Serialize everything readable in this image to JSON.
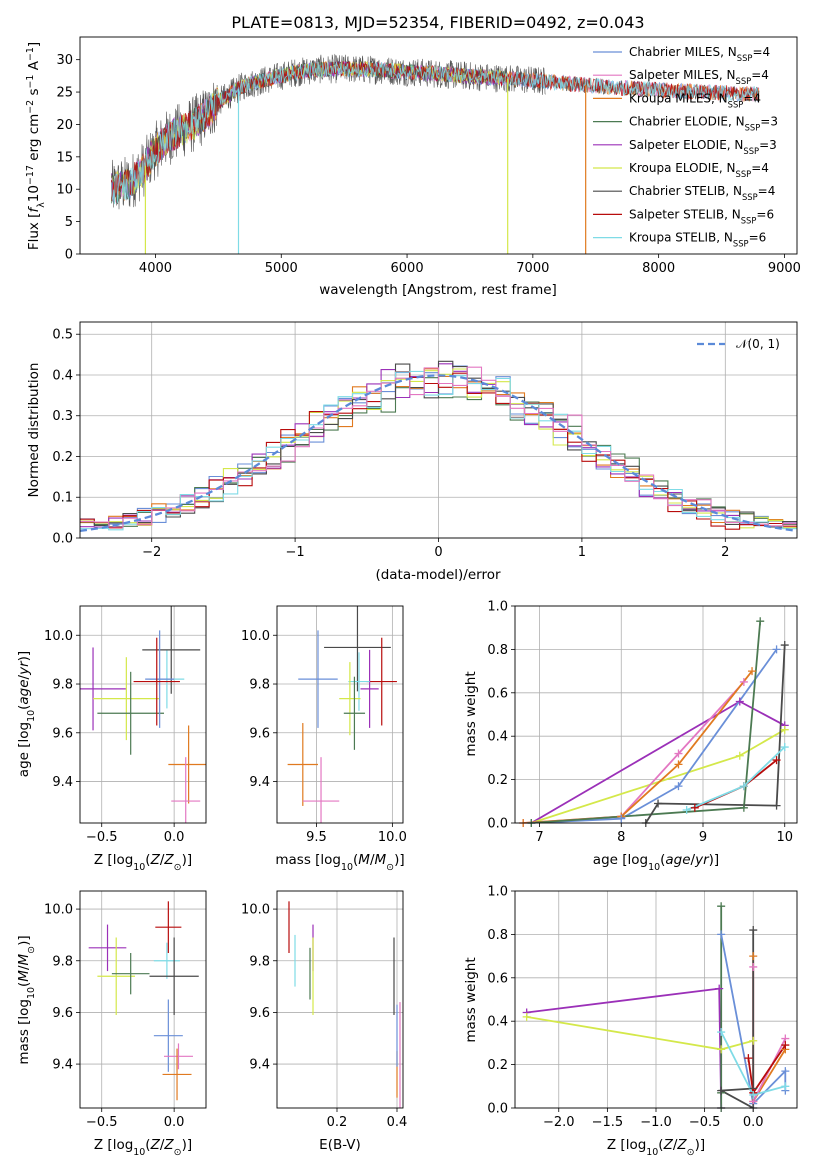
{
  "title": "PLATE=0813, MJD=52354, FIBERID=0492, z=0.043",
  "colors": {
    "Chabrier MILES": "#6a8fd8",
    "Salpeter MILES": "#e377c2",
    "Kroupa MILES": "#e07a20",
    "Chabrier ELODIE": "#4c7a52",
    "Salpeter ELODIE": "#9b30b8",
    "Kroupa ELODIE": "#d4e84a",
    "Chabrier STELIB": "#4a4a4a",
    "Salpeter STELIB": "#b80c0c",
    "Kroupa STELIB": "#7fdbe6"
  },
  "chart_data": [
    {
      "id": "spectrum",
      "type": "line",
      "xlabel": "wavelength [Angstrom, rest frame]",
      "ylabel": "Flux [f_λ 10^-17 erg cm^-2 s^-1 A^-1]",
      "xlim": [
        3400,
        9100
      ],
      "ylim": [
        0,
        33.5
      ],
      "xticks": [
        4000,
        5000,
        6000,
        7000,
        8000,
        9000
      ],
      "yticks": [
        0,
        5,
        10,
        15,
        20,
        25,
        30
      ],
      "legend_position": "upper right",
      "legend": [
        {
          "label": "Chabrier MILES, N",
          "sub": "SSP",
          "tail": "=4",
          "key": "Chabrier MILES"
        },
        {
          "label": "Salpeter MILES, N",
          "sub": "SSP",
          "tail": "=4",
          "key": "Salpeter MILES"
        },
        {
          "label": "Kroupa MILES, N",
          "sub": "SSP",
          "tail": "=4",
          "key": "Kroupa MILES"
        },
        {
          "label": "Chabrier ELODIE, N",
          "sub": "SSP",
          "tail": "=3",
          "key": "Chabrier ELODIE"
        },
        {
          "label": "Salpeter ELODIE, N",
          "sub": "SSP",
          "tail": "=3",
          "key": "Salpeter ELODIE"
        },
        {
          "label": "Kroupa ELODIE, N",
          "sub": "SSP",
          "tail": "=4",
          "key": "Kroupa ELODIE"
        },
        {
          "label": "Chabrier STELIB, N",
          "sub": "SSP",
          "tail": "=4",
          "key": "Chabrier STELIB"
        },
        {
          "label": "Salpeter STELIB, N",
          "sub": "SSP",
          "tail": "=6",
          "key": "Salpeter STELIB"
        },
        {
          "label": "Kroupa STELIB, N",
          "sub": "SSP",
          "tail": "=6",
          "key": "Kroupa STELIB"
        }
      ],
      "continuum_x": [
        3650,
        3800,
        3900,
        4000,
        4100,
        4200,
        4300,
        4400,
        4500,
        4700,
        4900,
        5100,
        5300,
        5500,
        5800,
        6100,
        6400,
        6700,
        7000,
        7300,
        7600,
        8000,
        8400,
        8800
      ],
      "continuum_y": [
        10,
        11,
        13,
        16,
        18,
        19,
        20,
        21.5,
        23.5,
        26,
        27,
        28,
        28.5,
        28.6,
        28.4,
        28,
        27.6,
        27.2,
        26.8,
        26.3,
        25.8,
        25.3,
        25,
        24.6
      ],
      "spectrum_range": [
        3650,
        7100
      ],
      "model_range": [
        3650,
        8800
      ],
      "dropouts": [
        {
          "x": 3920,
          "key": "Kroupa ELODIE"
        },
        {
          "x": 4660,
          "key": "Kroupa STELIB"
        },
        {
          "x": 6800,
          "key": "Kroupa ELODIE"
        },
        {
          "x": 7420,
          "key": "Kroupa MILES"
        }
      ]
    },
    {
      "id": "residuals",
      "type": "histogram",
      "xlabel": "(data-model)/error",
      "ylabel": "Normed distribution",
      "xlim": [
        -2.5,
        2.5
      ],
      "ylim": [
        0,
        0.53
      ],
      "xticks": [
        -2,
        -1,
        0,
        1,
        2
      ],
      "yticks": [
        0.0,
        0.1,
        0.2,
        0.3,
        0.4,
        0.5
      ],
      "bin_width": 0.1,
      "grid": true,
      "legend": [
        {
          "label": "N(0,1)",
          "style": "dashed",
          "color": "#5b8ad8"
        }
      ],
      "legend_position": "upper right"
    },
    {
      "id": "age_vs_Z",
      "type": "errorbar",
      "xlabel": "Z [log10(Z/Z⊙)]",
      "ylabel": "age [log10(age/yr)]",
      "xlim": [
        -0.65,
        0.22
      ],
      "ylim": [
        9.23,
        10.12
      ],
      "xticks": [
        -0.5,
        0.0
      ],
      "yticks": [
        9.4,
        9.6,
        9.8,
        10.0
      ],
      "points": [
        {
          "key": "Salpeter ELODIE",
          "x": -0.56,
          "y": 9.78,
          "xerr": 0.23,
          "yerr": 0.17
        },
        {
          "key": "Kroupa ELODIE",
          "x": -0.33,
          "y": 9.74,
          "xerr": 0.23,
          "yerr": 0.17
        },
        {
          "key": "Chabrier ELODIE",
          "x": -0.3,
          "y": 9.68,
          "xerr": 0.23,
          "yerr": 0.17
        },
        {
          "key": "Kroupa STELIB",
          "x": -0.05,
          "y": 9.82,
          "xerr": 0.12,
          "yerr": 0.12
        },
        {
          "key": "Chabrier STELIB",
          "x": -0.02,
          "y": 9.94,
          "xerr": 0.2,
          "yerr": 0.18
        },
        {
          "key": "Chabrier MILES",
          "x": -0.1,
          "y": 9.82,
          "xerr": 0.1,
          "yerr": 0.2
        },
        {
          "key": "Salpeter STELIB",
          "x": -0.12,
          "y": 9.81,
          "xerr": 0.16,
          "yerr": 0.18
        },
        {
          "key": "Kroupa MILES",
          "x": 0.1,
          "y": 9.47,
          "xerr": 0.14,
          "yerr": 0.16
        },
        {
          "key": "Salpeter MILES",
          "x": 0.08,
          "y": 9.32,
          "xerr": 0.1,
          "yerr": 0.18
        }
      ]
    },
    {
      "id": "age_vs_mass",
      "type": "errorbar",
      "xlabel": "mass [log10(M/M⊙)]",
      "ylabel": "",
      "xlim": [
        9.24,
        10.07
      ],
      "ylim": [
        9.23,
        10.12
      ],
      "xticks": [
        9.5,
        10.0
      ],
      "yticks": [
        9.4,
        9.6,
        9.8,
        10.0
      ],
      "points": [
        {
          "key": "Chabrier STELIB",
          "x": 9.77,
          "y": 9.95,
          "xerr": 0.22,
          "yerr": 0.18
        },
        {
          "key": "Salpeter STELIB",
          "x": 9.93,
          "y": 9.81,
          "xerr": 0.1,
          "yerr": 0.18
        },
        {
          "key": "Salpeter ELODIE",
          "x": 9.85,
          "y": 9.78,
          "xerr": 0.06,
          "yerr": 0.16
        },
        {
          "key": "Kroupa STELIB",
          "x": 9.78,
          "y": 9.81,
          "xerr": 0.07,
          "yerr": 0.12
        },
        {
          "key": "Kroupa ELODIE",
          "x": 9.72,
          "y": 9.74,
          "xerr": 0.07,
          "yerr": 0.15
        },
        {
          "key": "Chabrier ELODIE",
          "x": 9.75,
          "y": 9.68,
          "xerr": 0.07,
          "yerr": 0.15
        },
        {
          "key": "Chabrier MILES",
          "x": 9.51,
          "y": 9.82,
          "xerr": 0.13,
          "yerr": 0.2
        },
        {
          "key": "Kroupa MILES",
          "x": 9.41,
          "y": 9.47,
          "xerr": 0.1,
          "yerr": 0.17
        },
        {
          "key": "Salpeter MILES",
          "x": 9.53,
          "y": 9.32,
          "xerr": 0.12,
          "yerr": 0.18
        }
      ]
    },
    {
      "id": "weight_vs_age",
      "type": "line",
      "xlabel": "age [log10(age/yr)]",
      "ylabel": "mass weight",
      "xlim": [
        6.7,
        10.15
      ],
      "ylim": [
        0,
        1.0
      ],
      "xticks": [
        7,
        8,
        9,
        10
      ],
      "yticks": [
        0.0,
        0.2,
        0.4,
        0.6,
        0.8,
        1.0
      ],
      "grid": true,
      "series": [
        {
          "key": "Salpeter ELODIE",
          "x": [
            6.9,
            9.45,
            10.0
          ],
          "y": [
            0.0,
            0.56,
            0.45
          ]
        },
        {
          "key": "Kroupa ELODIE",
          "x": [
            6.9,
            9.45,
            10.0
          ],
          "y": [
            0.0,
            0.31,
            0.43
          ]
        },
        {
          "key": "Salpeter MILES",
          "x": [
            6.8,
            8.0,
            8.7,
            9.5
          ],
          "y": [
            0.0,
            0.03,
            0.32,
            0.65
          ]
        },
        {
          "key": "Kroupa MILES",
          "x": [
            6.8,
            8.0,
            8.7,
            9.6
          ],
          "y": [
            0.0,
            0.03,
            0.27,
            0.7
          ]
        },
        {
          "key": "Chabrier MILES",
          "x": [
            6.9,
            8.0,
            8.7,
            9.9
          ],
          "y": [
            0.0,
            0.02,
            0.17,
            0.8
          ]
        },
        {
          "key": "Chabrier ELODIE",
          "x": [
            6.9,
            9.5,
            9.7
          ],
          "y": [
            0.0,
            0.07,
            0.93
          ]
        },
        {
          "key": "Chabrier STELIB",
          "x": [
            8.3,
            8.45,
            9.9,
            10.0
          ],
          "y": [
            0.0,
            0.09,
            0.08,
            0.82
          ]
        },
        {
          "key": "Salpeter STELIB",
          "x": [
            8.9,
            9.5,
            9.9
          ],
          "y": [
            0.07,
            0.17,
            0.29
          ]
        },
        {
          "key": "Kroupa STELIB",
          "x": [
            8.8,
            9.5,
            10.0
          ],
          "y": [
            0.06,
            0.17,
            0.35
          ]
        }
      ]
    },
    {
      "id": "mass_vs_Z",
      "type": "errorbar",
      "xlabel": "Z [log10(Z/Z⊙)]",
      "ylabel": "mass [log10(M/M⊙)]",
      "xlim": [
        -0.65,
        0.22
      ],
      "ylim": [
        9.23,
        10.07
      ],
      "xticks": [
        -0.5,
        0.0
      ],
      "yticks": [
        9.4,
        9.6,
        9.8,
        10.0
      ],
      "points": [
        {
          "key": "Salpeter ELODIE",
          "x": -0.46,
          "y": 9.85,
          "xerr": 0.13,
          "yerr": 0.09
        },
        {
          "key": "Kroupa ELODIE",
          "x": -0.4,
          "y": 9.74,
          "xerr": 0.13,
          "yerr": 0.15
        },
        {
          "key": "Chabrier ELODIE",
          "x": -0.3,
          "y": 9.75,
          "xerr": 0.13,
          "yerr": 0.08
        },
        {
          "key": "Salpeter STELIB",
          "x": -0.04,
          "y": 9.93,
          "xerr": 0.09,
          "yerr": 0.1
        },
        {
          "key": "Kroupa STELIB",
          "x": -0.05,
          "y": 9.8,
          "xerr": 0.09,
          "yerr": 0.07
        },
        {
          "key": "Chabrier STELIB",
          "x": 0.0,
          "y": 9.74,
          "xerr": 0.17,
          "yerr": 0.15
        },
        {
          "key": "Chabrier MILES",
          "x": -0.04,
          "y": 9.51,
          "xerr": 0.1,
          "yerr": 0.14
        },
        {
          "key": "Salpeter MILES",
          "x": 0.03,
          "y": 9.43,
          "xerr": 0.1,
          "yerr": 0.05
        },
        {
          "key": "Kroupa MILES",
          "x": 0.02,
          "y": 9.36,
          "xerr": 0.1,
          "yerr": 0.1
        }
      ]
    },
    {
      "id": "mass_vs_ebv",
      "type": "errorbar",
      "xlabel": "E(B-V)",
      "ylabel": "",
      "xlim": [
        0.0,
        0.42
      ],
      "ylim": [
        9.23,
        10.07
      ],
      "xticks": [
        0.2,
        0.4
      ],
      "yticks": [
        9.4,
        9.6,
        9.8,
        10.0
      ],
      "points": [
        {
          "key": "Salpeter STELIB",
          "x": 0.04,
          "y": 9.93,
          "xerr": 0.0,
          "yerr": 0.1
        },
        {
          "key": "Kroupa STELIB",
          "x": 0.06,
          "y": 9.8,
          "xerr": 0.0,
          "yerr": 0.1
        },
        {
          "key": "Salpeter ELODIE",
          "x": 0.12,
          "y": 9.85,
          "xerr": 0.0,
          "yerr": 0.09
        },
        {
          "key": "Chabrier ELODIE",
          "x": 0.11,
          "y": 9.75,
          "xerr": 0.0,
          "yerr": 0.1
        },
        {
          "key": "Kroupa ELODIE",
          "x": 0.12,
          "y": 9.74,
          "xerr": 0.0,
          "yerr": 0.15
        },
        {
          "key": "Chabrier STELIB",
          "x": 0.39,
          "y": 9.74,
          "xerr": 0.0,
          "yerr": 0.15
        },
        {
          "key": "Salpeter MILES",
          "x": 0.41,
          "y": 9.43,
          "xerr": 0.0,
          "yerr": 0.21
        },
        {
          "key": "Kroupa MILES",
          "x": 0.4,
          "y": 9.36,
          "xerr": 0.0,
          "yerr": 0.09
        },
        {
          "key": "Chabrier MILES",
          "x": 0.4,
          "y": 9.51,
          "xerr": 0.0,
          "yerr": 0.12
        }
      ]
    },
    {
      "id": "weight_vs_Z",
      "type": "line",
      "xlabel": "Z [log10(Z/Z⊙)]",
      "ylabel": "mass weight",
      "xlim": [
        -2.45,
        0.45
      ],
      "ylim": [
        0,
        1.0
      ],
      "xticks": [
        -2.0,
        -1.5,
        -1.0,
        -0.5,
        0.0
      ],
      "yticks": [
        0.0,
        0.2,
        0.4,
        0.6,
        0.8,
        1.0
      ],
      "grid": true,
      "series": [
        {
          "key": "Salpeter ELODIE",
          "x": [
            -2.33,
            -0.35,
            -0.33
          ],
          "y": [
            0.44,
            0.55,
            0.0
          ]
        },
        {
          "key": "Kroupa ELODIE",
          "x": [
            -2.33,
            -0.33,
            0.0
          ],
          "y": [
            0.42,
            0.27,
            0.31
          ]
        },
        {
          "key": "Chabrier ELODIE",
          "x": [
            -0.33,
            -0.33,
            -0.33
          ],
          "y": [
            0.93,
            0.0,
            0.07
          ]
        },
        {
          "key": "Chabrier MILES",
          "x": [
            -0.33,
            0.0,
            0.33,
            0.33
          ],
          "y": [
            0.8,
            0.02,
            0.17,
            0.08
          ]
        },
        {
          "key": "Kroupa MILES",
          "x": [
            0.0,
            0.0,
            0.33
          ],
          "y": [
            0.7,
            0.03,
            0.27
          ]
        },
        {
          "key": "Salpeter MILES",
          "x": [
            0.0,
            0.0,
            0.33
          ],
          "y": [
            0.65,
            0.03,
            0.32
          ]
        },
        {
          "key": "Chabrier STELIB",
          "x": [
            0.0,
            0.0,
            -0.33,
            0.0
          ],
          "y": [
            0.82,
            0.0,
            0.08,
            0.09
          ]
        },
        {
          "key": "Salpeter STELIB",
          "x": [
            -0.05,
            0.0,
            0.33
          ],
          "y": [
            0.23,
            0.07,
            0.29
          ]
        },
        {
          "key": "Kroupa STELIB",
          "x": [
            -0.33,
            0.0,
            0.33
          ],
          "y": [
            0.35,
            0.06,
            0.1
          ]
        }
      ]
    }
  ],
  "hist_keys": [
    "Chabrier MILES",
    "Kroupa MILES",
    "Chabrier ELODIE",
    "Salpeter ELODIE",
    "Kroupa ELODIE",
    "Chabrier STELIB",
    "Salpeter STELIB",
    "Kroupa STELIB",
    "Salpeter MILES"
  ]
}
